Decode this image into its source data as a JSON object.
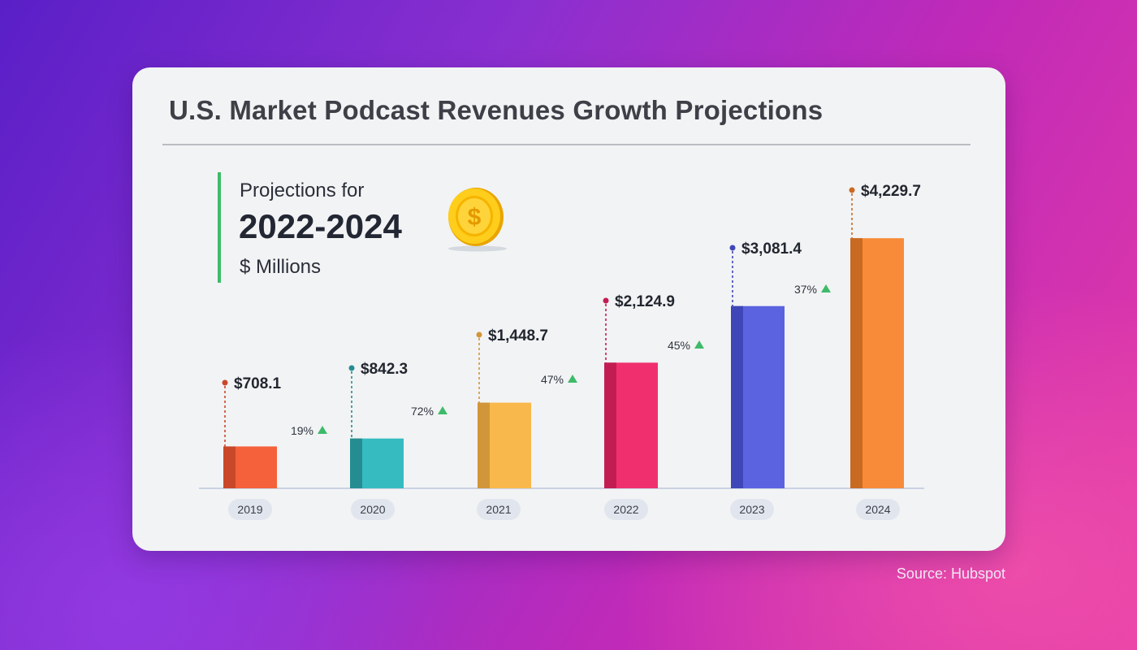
{
  "source": "Source: Hubspot",
  "chart_data": {
    "type": "bar",
    "title": "U.S. Market Podcast Revenues Growth Projections",
    "subtitle": {
      "line1": "Projections for",
      "line2": "2022-2024",
      "line3": "$ Millions"
    },
    "categories": [
      "2019",
      "2020",
      "2021",
      "2022",
      "2023",
      "2024"
    ],
    "values": [
      708.1,
      842.3,
      1448.7,
      2124.9,
      3081.4,
      4229.7
    ],
    "value_labels": [
      "$708.1",
      "$842.3",
      "$1,448.7",
      "$2,124.9",
      "$3,081.4",
      "$4,229.7"
    ],
    "growth_labels": [
      "19%",
      "72%",
      "47%",
      "45%",
      "37%"
    ],
    "colors": [
      "#f5613a",
      "#36bcc0",
      "#f9b84b",
      "#f0306e",
      "#5b63e0",
      "#f78b39"
    ],
    "dark_colors": [
      "#c9482a",
      "#258d91",
      "#d2963a",
      "#c21d52",
      "#3f46b8",
      "#c96a23"
    ],
    "growth_color": "#3dbb6a",
    "xlabel": "",
    "ylabel": "",
    "icon": "coin-dollar-icon"
  }
}
